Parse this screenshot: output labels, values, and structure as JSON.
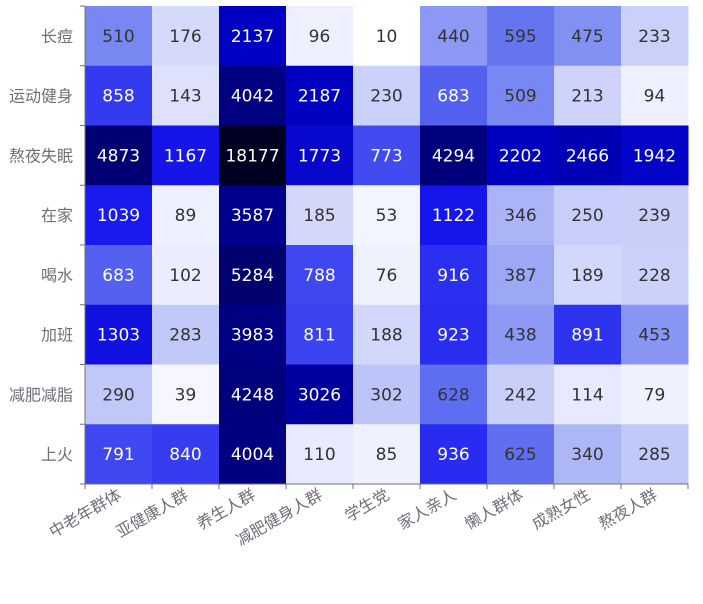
{
  "chart_data": {
    "type": "heatmap",
    "title": "",
    "xlabel": "",
    "ylabel": "",
    "x_categories": [
      "中老年群体",
      "亚健康人群",
      "养生人群",
      "减肥健身人群",
      "学生党",
      "家人亲人",
      "懒人群体",
      "成熟女性",
      "熬夜人群"
    ],
    "y_categories": [
      "长痘",
      "运动健身",
      "熬夜失眠",
      "在家",
      "喝水",
      "加班",
      "减肥减脂",
      "上火"
    ],
    "values": [
      [
        510,
        176,
        2137,
        96,
        10,
        440,
        595,
        475,
        233
      ],
      [
        858,
        143,
        4042,
        2187,
        230,
        683,
        509,
        213,
        94
      ],
      [
        4873,
        1167,
        18177,
        1773,
        773,
        4294,
        2202,
        2466,
        1942
      ],
      [
        1039,
        89,
        3587,
        185,
        53,
        1122,
        346,
        250,
        239
      ],
      [
        683,
        102,
        5284,
        788,
        76,
        916,
        387,
        189,
        228
      ],
      [
        1303,
        283,
        3983,
        811,
        188,
        923,
        438,
        891,
        453
      ],
      [
        290,
        39,
        4248,
        3026,
        302,
        628,
        242,
        114,
        79
      ],
      [
        791,
        840,
        4004,
        110,
        85,
        936,
        625,
        340,
        285
      ]
    ],
    "color_scale": {
      "type": "log",
      "colors": [
        "#ffffff",
        "#eef0ff",
        "#c0c8f8",
        "#6070f0",
        "#1818f0",
        "#0000c0",
        "#000080",
        "#000020"
      ]
    },
    "data_labels": true,
    "grid": false,
    "legend": "none"
  }
}
